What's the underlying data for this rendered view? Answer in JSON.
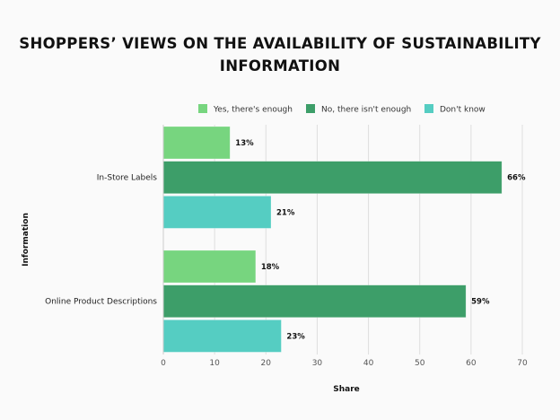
{
  "chart_data": {
    "type": "bar",
    "orientation": "horizontal",
    "title": [
      "SHOPPERS’ VIEWS ON THE AVAILABILITY OF SUSTAINABILITY",
      "INFORMATION"
    ],
    "xlabel": "Share",
    "ylabel": "Information",
    "xlim": [
      0,
      70
    ],
    "xticks": [
      0,
      10,
      20,
      30,
      40,
      50,
      60,
      70
    ],
    "grid": true,
    "legend_position": "top",
    "categories": [
      "In-Store Labels",
      "Online Product Descriptions"
    ],
    "series": [
      {
        "name": "Yes, there's enough",
        "values": [
          13,
          18
        ],
        "labels": [
          "13%",
          "18%"
        ],
        "color": "#77d57f"
      },
      {
        "name": "No, there isn't enough",
        "values": [
          66,
          59
        ],
        "labels": [
          "66%",
          "59%"
        ],
        "color": "#3d9e69"
      },
      {
        "name": "Don't know",
        "values": [
          21,
          23
        ],
        "labels": [
          "21%",
          "23%"
        ],
        "color": "#55cdc2"
      }
    ]
  }
}
